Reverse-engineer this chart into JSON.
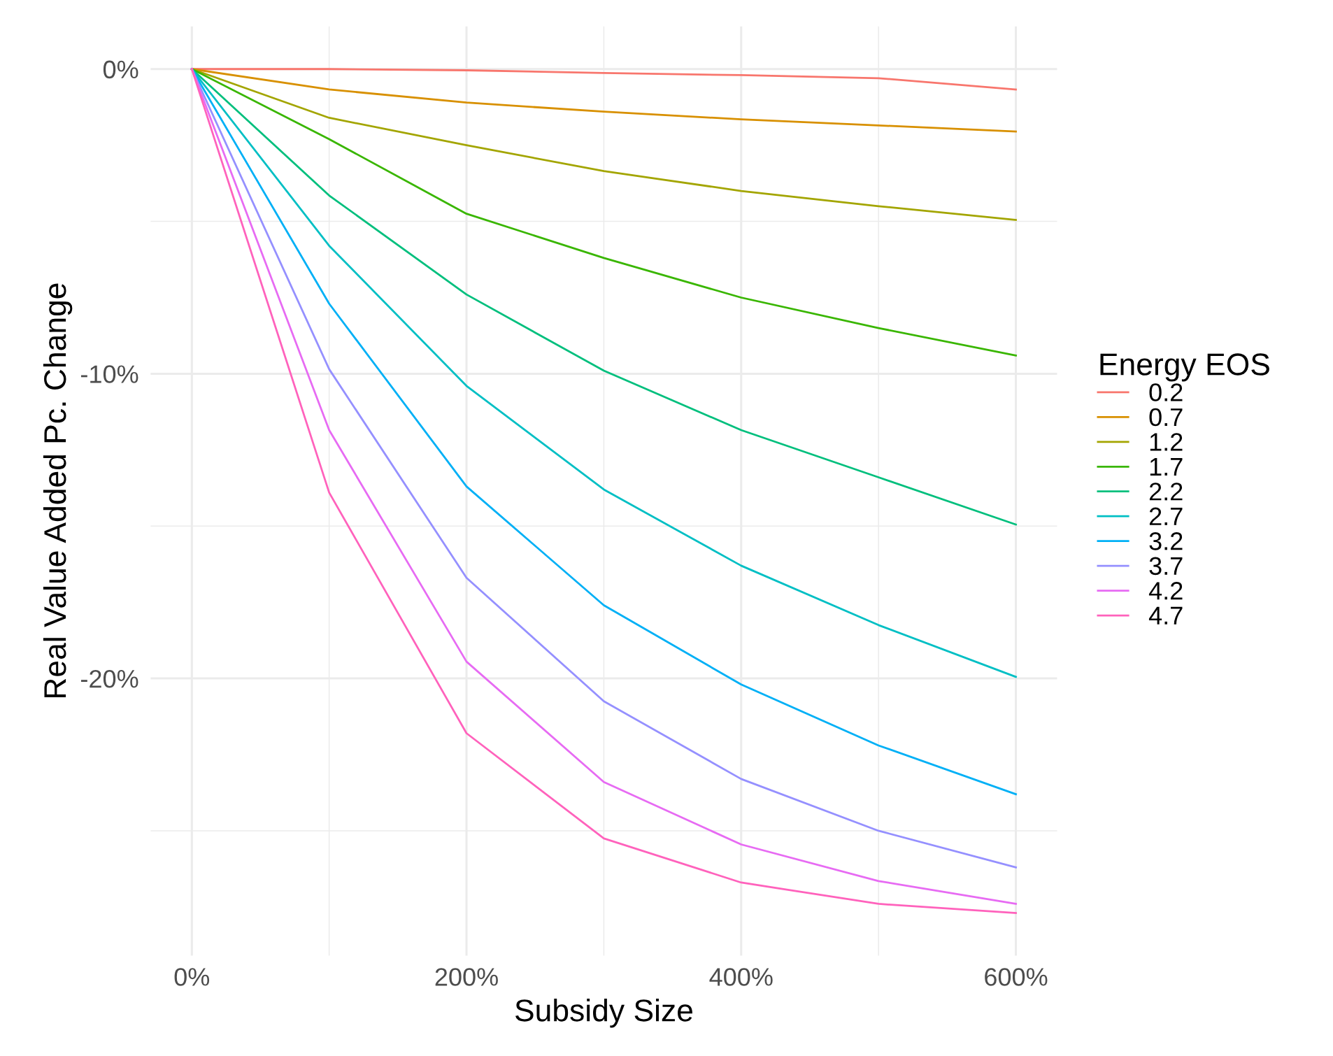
{
  "chart_data": {
    "type": "line",
    "xlabel": "Subsidy Size",
    "ylabel": "Real Value Added Pc. Change",
    "legend_title": "Energy EOS",
    "legend": "right",
    "grid": true,
    "marker": "none",
    "line_style": "solid",
    "x": [
      0,
      100,
      200,
      300,
      400,
      500,
      600
    ],
    "xlim": [
      -30,
      630
    ],
    "ylim": [
      -29.1,
      1.4
    ],
    "xticks": [
      {
        "value": 0,
        "label": "0%"
      },
      {
        "value": 100,
        "label": null
      },
      {
        "value": 200,
        "label": "200%"
      },
      {
        "value": 300,
        "label": null
      },
      {
        "value": 400,
        "label": "400%"
      },
      {
        "value": 500,
        "label": null
      },
      {
        "value": 600,
        "label": "600%"
      }
    ],
    "yticks": [
      {
        "value": 0,
        "label": "0%"
      },
      {
        "value": -5,
        "label": null
      },
      {
        "value": -10,
        "label": "-10%"
      },
      {
        "value": -15,
        "label": null
      },
      {
        "value": -20,
        "label": "-20%"
      },
      {
        "value": -25,
        "label": null
      }
    ],
    "series": [
      {
        "name": "0.2",
        "color": "#F8766D",
        "values": [
          0,
          0,
          -0.04,
          -0.13,
          -0.2,
          -0.3,
          -0.67
        ]
      },
      {
        "name": "0.7",
        "color": "#D89000",
        "values": [
          0,
          -0.67,
          -1.1,
          -1.4,
          -1.65,
          -1.85,
          -2.05
        ]
      },
      {
        "name": "1.2",
        "color": "#A3A500",
        "values": [
          0,
          -1.6,
          -2.5,
          -3.35,
          -4.0,
          -4.5,
          -4.95
        ]
      },
      {
        "name": "1.7",
        "color": "#39B600",
        "values": [
          0,
          -2.3,
          -4.75,
          -6.2,
          -7.5,
          -8.5,
          -9.4
        ]
      },
      {
        "name": "2.2",
        "color": "#00BF7D",
        "values": [
          0,
          -4.15,
          -7.4,
          -9.9,
          -11.85,
          -13.4,
          -14.95
        ]
      },
      {
        "name": "2.7",
        "color": "#00BFC4",
        "values": [
          0,
          -5.8,
          -10.4,
          -13.8,
          -16.3,
          -18.25,
          -19.95
        ]
      },
      {
        "name": "3.2",
        "color": "#00B0F6",
        "values": [
          0,
          -7.7,
          -13.7,
          -17.6,
          -20.2,
          -22.2,
          -23.8
        ]
      },
      {
        "name": "3.7",
        "color": "#9590FF",
        "values": [
          0,
          -9.85,
          -16.7,
          -20.75,
          -23.3,
          -25.0,
          -26.2
        ]
      },
      {
        "name": "4.2",
        "color": "#E76BF3",
        "values": [
          0,
          -11.85,
          -19.45,
          -23.4,
          -25.45,
          -26.65,
          -27.4
        ]
      },
      {
        "name": "4.7",
        "color": "#FF62BC",
        "values": [
          0,
          -13.9,
          -21.8,
          -25.25,
          -26.7,
          -27.4,
          -27.7
        ]
      }
    ]
  }
}
